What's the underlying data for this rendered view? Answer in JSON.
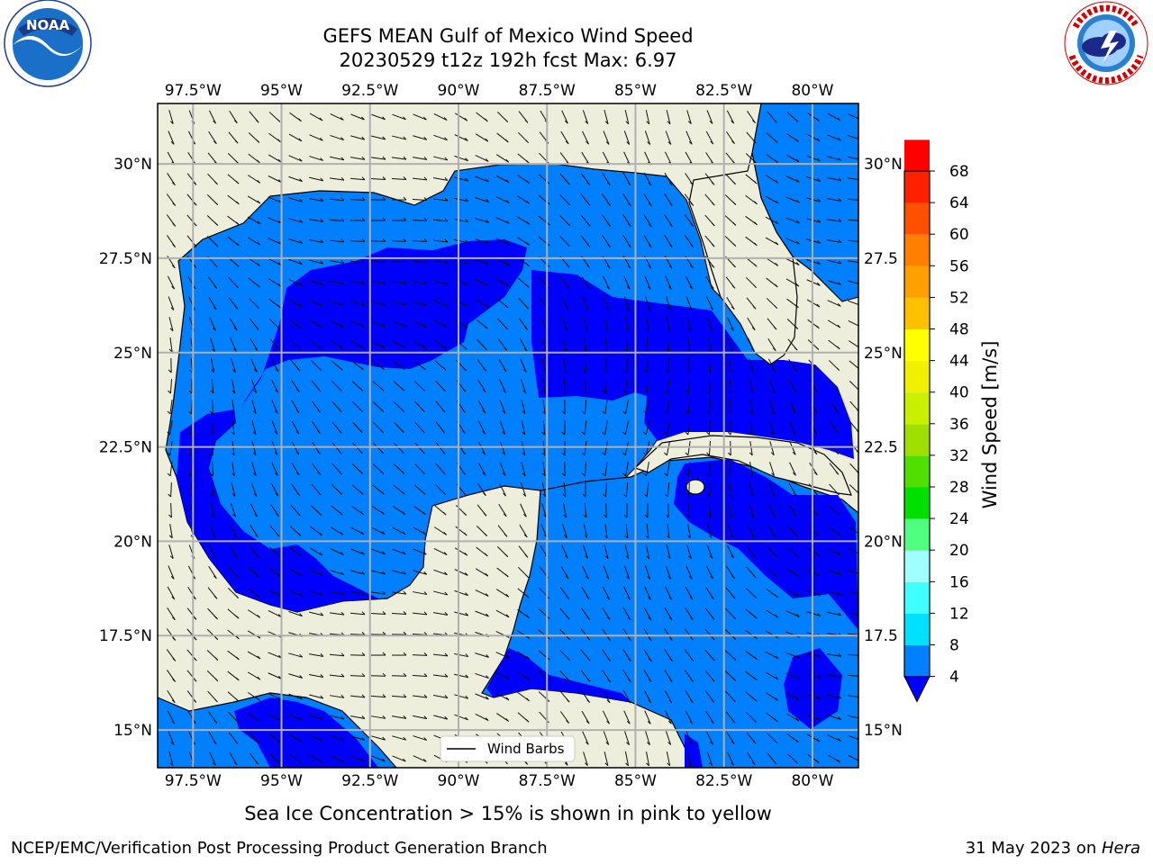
{
  "title": {
    "line1": "GEFS MEAN Gulf of Mexico Wind Speed",
    "line2": "20230529 t12z 192h fcst   Max: 6.97"
  },
  "subtitle": "Sea Ice Concentration > 15% is shown in pink to yellow",
  "footer": {
    "left": "NCEP/EMC/Verification Post Processing Product Generation Branch",
    "right_prefix": "31 May 2023 on ",
    "right_host": "Hera"
  },
  "logos": {
    "noaa": {
      "name": "NOAA",
      "ring_text": "NATIONAL OCEANIC AND ATMOSPHERIC ADMINISTRATION · U.S. DEPARTMENT OF COMMERCE"
    },
    "nws": {
      "ring_text": "NATIONAL WEATHER SERVICE"
    }
  },
  "map": {
    "lon_range": [
      -98.5,
      -78.7
    ],
    "lat_range": [
      14.0,
      31.6
    ],
    "lon_ticks": [
      {
        "v": -97.5,
        "label": "97.5°W"
      },
      {
        "v": -95,
        "label": "95°W"
      },
      {
        "v": -92.5,
        "label": "92.5°W"
      },
      {
        "v": -90,
        "label": "90°W"
      },
      {
        "v": -87.5,
        "label": "87.5°W"
      },
      {
        "v": -85,
        "label": "85°W"
      },
      {
        "v": -82.5,
        "label": "82.5°W"
      },
      {
        "v": -80,
        "label": "80°W"
      }
    ],
    "lat_ticks": [
      {
        "v": 30,
        "label": "30°N"
      },
      {
        "v": 27.5,
        "label": "27.5°N"
      },
      {
        "v": 25,
        "label": "25°N"
      },
      {
        "v": 22.5,
        "label": "22.5°N"
      },
      {
        "v": 20,
        "label": "20°N"
      },
      {
        "v": 17.5,
        "label": "17.5°N"
      },
      {
        "v": 15,
        "label": "15°N"
      }
    ],
    "lat_ticks_right": [
      "30°N",
      "27.5",
      "25°N",
      "22.5",
      "20°N",
      "17.5",
      "15°N"
    ],
    "legend_label": "Wind Barbs",
    "colors": {
      "land": "#eeeedd",
      "band_4_8": "#0080ff",
      "band_under_4": "#0000ff",
      "grid": "#b0b0b0"
    }
  },
  "colorbar": {
    "label": "Wind Speed [m/s]",
    "ticks": [
      "4",
      "8",
      "12",
      "16",
      "20",
      "24",
      "28",
      "32",
      "36",
      "40",
      "44",
      "48",
      "52",
      "56",
      "60",
      "64",
      "68"
    ],
    "colors": [
      "#0080ff",
      "#00e0ff",
      "#40ffff",
      "#a0ffff",
      "#50ff80",
      "#00e000",
      "#50e000",
      "#a0e000",
      "#c8f000",
      "#f0f000",
      "#ffff00",
      "#ffc000",
      "#ffa000",
      "#ff8000",
      "#ff5000",
      "#ff2000",
      "#ff0000"
    ],
    "under_color": "#0000ff"
  }
}
